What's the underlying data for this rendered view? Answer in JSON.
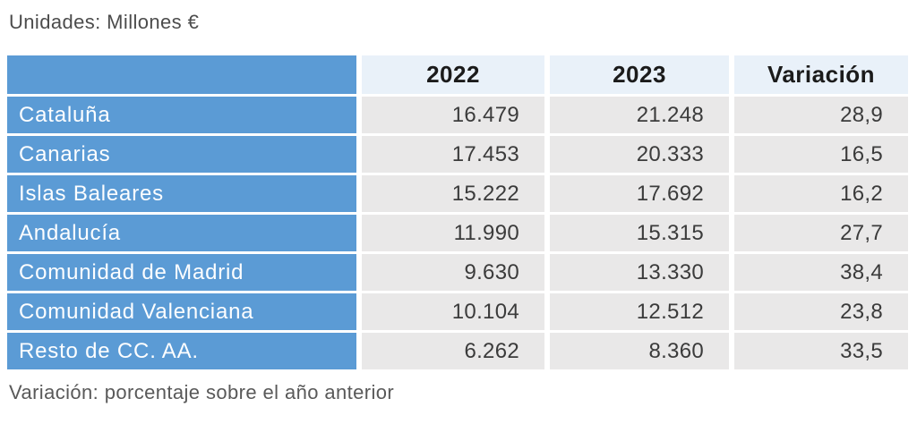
{
  "header": {
    "units_label": "Unidades: Millones €"
  },
  "table": {
    "columns": [
      "",
      "2022",
      "2023",
      "Variación"
    ],
    "rows": [
      {
        "region": "Cataluña",
        "y2022": "16.479",
        "y2023": "21.248",
        "variacion": "28,9"
      },
      {
        "region": "Canarias",
        "y2022": "17.453",
        "y2023": "20.333",
        "variacion": "16,5"
      },
      {
        "region": "Islas Baleares",
        "y2022": "15.222",
        "y2023": "17.692",
        "variacion": "16,2"
      },
      {
        "region": "Andalucía",
        "y2022": "11.990",
        "y2023": "15.315",
        "variacion": "27,7"
      },
      {
        "region": "Comunidad de Madrid",
        "y2022": "9.630",
        "y2023": "13.330",
        "variacion": "38,4"
      },
      {
        "region": "Comunidad Valenciana",
        "y2022": "10.104",
        "y2023": "12.512",
        "variacion": "23,8"
      },
      {
        "region": "Resto de CC. AA.",
        "y2022": "6.262",
        "y2023": "8.360",
        "variacion": "33,5"
      }
    ]
  },
  "footer": {
    "note": "Variación: porcentaje sobre el año anterior"
  },
  "colors": {
    "accent_blue": "#5b9bd5",
    "header_light_blue": "#e9f1f9",
    "cell_gray": "#e9e8e8",
    "value_text": "#3b3b3b",
    "label_text": "#fdfeff"
  },
  "chart_data": {
    "type": "table",
    "title": "Unidades: Millones €",
    "columns": [
      "",
      "2022",
      "2023",
      "Variación"
    ],
    "rows": [
      [
        "Cataluña",
        16479,
        21248,
        28.9
      ],
      [
        "Canarias",
        17453,
        20333,
        16.5
      ],
      [
        "Islas Baleares",
        15222,
        17692,
        16.2
      ],
      [
        "Andalucía",
        11990,
        15315,
        27.7
      ],
      [
        "Comunidad de Madrid",
        9630,
        13330,
        38.4
      ],
      [
        "Comunidad Valenciana",
        10104,
        12512,
        23.8
      ],
      [
        "Resto de CC. AA.",
        6262,
        8360,
        33.5
      ]
    ],
    "note": "Variación: porcentaje sobre el año anterior",
    "units": "Millones €"
  }
}
